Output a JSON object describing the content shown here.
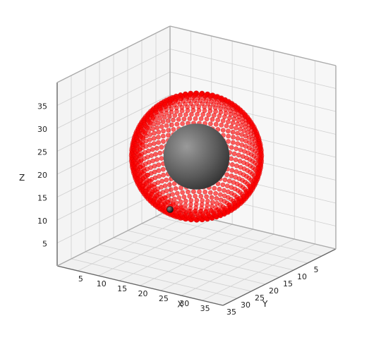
{
  "chart_data": {
    "type": "scatter",
    "projection": "3d",
    "xlabel": "X",
    "ylabel": "Y",
    "zlabel": "Z",
    "xlim": [
      0,
      40
    ],
    "ylim": [
      0,
      40
    ],
    "zlim": [
      0,
      40
    ],
    "x_ticks": [
      5,
      10,
      15,
      20,
      25,
      30,
      35
    ],
    "y_ticks": [
      5,
      10,
      15,
      20,
      25,
      30,
      35
    ],
    "z_ticks": [
      5,
      10,
      15,
      20,
      25,
      30,
      35
    ],
    "grid": true,
    "series": [
      {
        "marker": "circle",
        "color": "#ff0000",
        "description_shape": "hollow sphere shell, partially open toward the viewer",
        "center": [
          20,
          20,
          22
        ],
        "radius": 13
      }
    ],
    "objects": [
      {
        "kind": "sphere",
        "color": "#666666",
        "center": [
          20,
          20,
          22
        ],
        "radius": 6.5
      },
      {
        "kind": "point",
        "color": "#333333",
        "position": [
          0,
          0,
          0
        ]
      }
    ]
  }
}
